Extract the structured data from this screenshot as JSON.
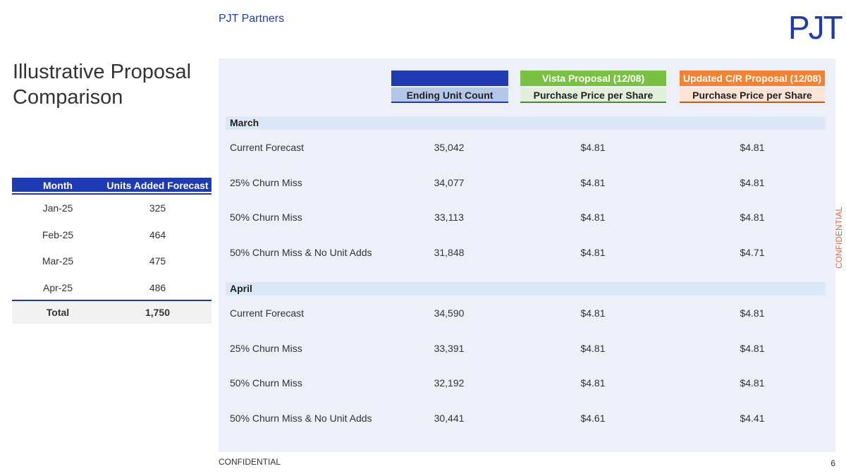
{
  "header": {
    "brand": "PJT Partners",
    "logo": "PJT"
  },
  "title": "Illustrative Proposal Comparison",
  "side_label": "CONFIDENTIAL",
  "units_table": {
    "columns": [
      "Month",
      "Units Added Forecast"
    ],
    "rows": [
      [
        "Jan-25",
        "325"
      ],
      [
        "Feb-25",
        "464"
      ],
      [
        "Mar-25",
        "475"
      ],
      [
        "Apr-25",
        "486"
      ]
    ],
    "total": [
      "Total",
      "1,750"
    ]
  },
  "comparison": {
    "groups": [
      "Vista Proposal (12/08)",
      "Updated C/R Proposal (12/08)"
    ],
    "columns": [
      "Ending Unit Count",
      "Purchase Price per Share",
      "Purchase Price per Share"
    ],
    "sections": [
      {
        "name": "March",
        "rows": [
          [
            "Current Forecast",
            "35,042",
            "$4.81",
            "$4.81"
          ],
          [
            "25% Churn Miss",
            "34,077",
            "$4.81",
            "$4.81"
          ],
          [
            "50% Churn Miss",
            "33,113",
            "$4.81",
            "$4.81"
          ],
          [
            "50% Churn Miss & No Unit Adds",
            "31,848",
            "$4.81",
            "$4.71"
          ]
        ]
      },
      {
        "name": "April",
        "rows": [
          [
            "Current Forecast",
            "34,590",
            "$4.81",
            "$4.81"
          ],
          [
            "25% Churn Miss",
            "33,391",
            "$4.81",
            "$4.81"
          ],
          [
            "50% Churn Miss",
            "32,192",
            "$4.81",
            "$4.81"
          ],
          [
            "50% Churn Miss & No Unit Adds",
            "30,441",
            "$4.61",
            "$4.41"
          ]
        ]
      }
    ]
  },
  "footer": {
    "left": "CONFIDENTIAL",
    "page": "6"
  }
}
